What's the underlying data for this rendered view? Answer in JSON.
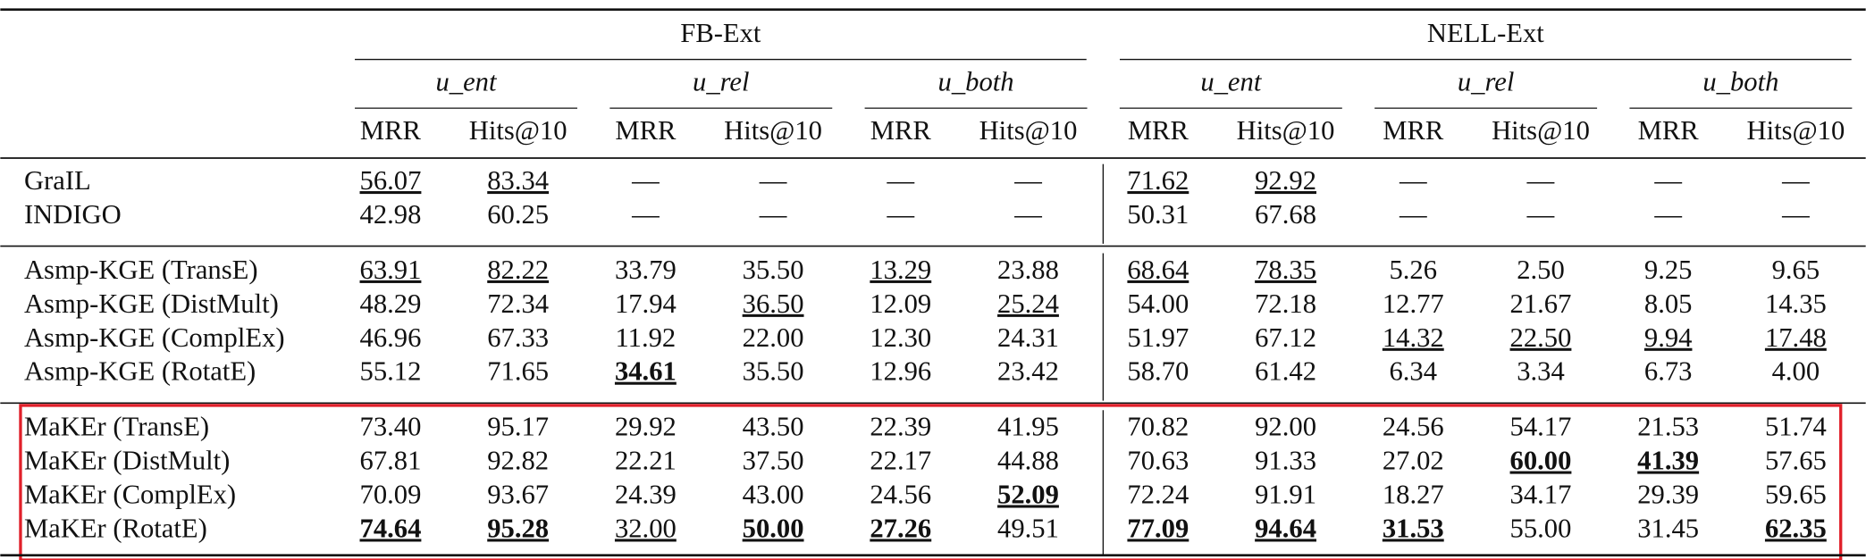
{
  "table": {
    "header": {
      "groups": [
        {
          "label": "FB-Ext",
          "subgroups": [
            {
              "label": "u_ent",
              "metrics": [
                "MRR",
                "Hits@10"
              ]
            },
            {
              "label": "u_rel",
              "metrics": [
                "MRR",
                "Hits@10"
              ]
            },
            {
              "label": "u_both",
              "metrics": [
                "MRR",
                "Hits@10"
              ]
            }
          ]
        },
        {
          "label": "NELL-Ext",
          "subgroups": [
            {
              "label": "u_ent",
              "metrics": [
                "MRR",
                "Hits@10"
              ]
            },
            {
              "label": "u_rel",
              "metrics": [
                "MRR",
                "Hits@10"
              ]
            },
            {
              "label": "u_both",
              "metrics": [
                "MRR",
                "Hits@10"
              ]
            }
          ]
        }
      ]
    },
    "groups": [
      {
        "rows": [
          {
            "method": "GraIL",
            "cells": [
              {
                "text": "56.07",
                "underline": true
              },
              {
                "text": "83.34",
                "underline": true
              },
              "—",
              "—",
              "—",
              "—",
              {
                "text": "71.62",
                "underline": true
              },
              {
                "text": "92.92",
                "underline": true
              },
              "—",
              "—",
              "—",
              "—"
            ]
          },
          {
            "method": "INDIGO",
            "cells": [
              "42.98",
              "60.25",
              "—",
              "—",
              "—",
              "—",
              "50.31",
              "67.68",
              "—",
              "—",
              "—",
              "—"
            ]
          }
        ]
      },
      {
        "rows": [
          {
            "method": "Asmp-KGE (TransE)",
            "cells": [
              {
                "text": "63.91",
                "underline": true
              },
              {
                "text": "82.22",
                "underline": true
              },
              "33.79",
              "35.50",
              {
                "text": "13.29",
                "underline": true
              },
              "23.88",
              {
                "text": "68.64",
                "underline": true
              },
              {
                "text": "78.35",
                "underline": true
              },
              "5.26",
              "2.50",
              "9.25",
              "9.65"
            ]
          },
          {
            "method": "Asmp-KGE (DistMult)",
            "cells": [
              "48.29",
              "72.34",
              "17.94",
              {
                "text": "36.50",
                "underline": true
              },
              "12.09",
              {
                "text": "25.24",
                "underline": true
              },
              "54.00",
              "72.18",
              "12.77",
              "21.67",
              "8.05",
              "14.35"
            ]
          },
          {
            "method": "Asmp-KGE (ComplEx)",
            "cells": [
              "46.96",
              "67.33",
              "11.92",
              "22.00",
              "12.30",
              "24.31",
              "51.97",
              "67.12",
              {
                "text": "14.32",
                "underline": true
              },
              {
                "text": "22.50",
                "underline": true
              },
              {
                "text": "9.94",
                "underline": true
              },
              {
                "text": "17.48",
                "underline": true
              }
            ]
          },
          {
            "method": "Asmp-KGE (RotatE)",
            "cells": [
              "55.12",
              "71.65",
              {
                "text": "34.61",
                "bold": true,
                "underline": true
              },
              "35.50",
              "12.96",
              "23.42",
              "58.70",
              "61.42",
              "6.34",
              "3.34",
              "6.73",
              "4.00"
            ]
          }
        ]
      },
      {
        "highlight": true,
        "rows": [
          {
            "method": "MaKEr (TransE)",
            "cells": [
              "73.40",
              "95.17",
              "29.92",
              "43.50",
              "22.39",
              "41.95",
              "70.82",
              "92.00",
              "24.56",
              "54.17",
              "21.53",
              "51.74"
            ]
          },
          {
            "method": "MaKEr (DistMult)",
            "cells": [
              "67.81",
              "92.82",
              "22.21",
              "37.50",
              "22.17",
              "44.88",
              "70.63",
              "91.33",
              "27.02",
              {
                "text": "60.00",
                "bold": true,
                "underline": true
              },
              {
                "text": "41.39",
                "bold": true,
                "underline": true
              },
              "57.65"
            ]
          },
          {
            "method": "MaKEr (ComplEx)",
            "cells": [
              "70.09",
              "93.67",
              "24.39",
              "43.00",
              "24.56",
              {
                "text": "52.09",
                "bold": true,
                "underline": true
              },
              "72.24",
              "91.91",
              "18.27",
              "34.17",
              "29.39",
              "59.65"
            ]
          },
          {
            "method": "MaKEr (RotatE)",
            "cells": [
              {
                "text": "74.64",
                "bold": true,
                "underline": true
              },
              {
                "text": "95.28",
                "bold": true,
                "underline": true
              },
              {
                "text": "32.00",
                "underline": true
              },
              {
                "text": "50.00",
                "bold": true,
                "underline": true
              },
              {
                "text": "27.26",
                "bold": true,
                "underline": true
              },
              "49.51",
              {
                "text": "77.09",
                "bold": true,
                "underline": true
              },
              {
                "text": "94.64",
                "bold": true,
                "underline": true
              },
              {
                "text": "31.53",
                "bold": true,
                "underline": true
              },
              "55.00",
              "31.45",
              {
                "text": "62.35",
                "bold": true,
                "underline": true
              }
            ]
          }
        ]
      }
    ]
  }
}
